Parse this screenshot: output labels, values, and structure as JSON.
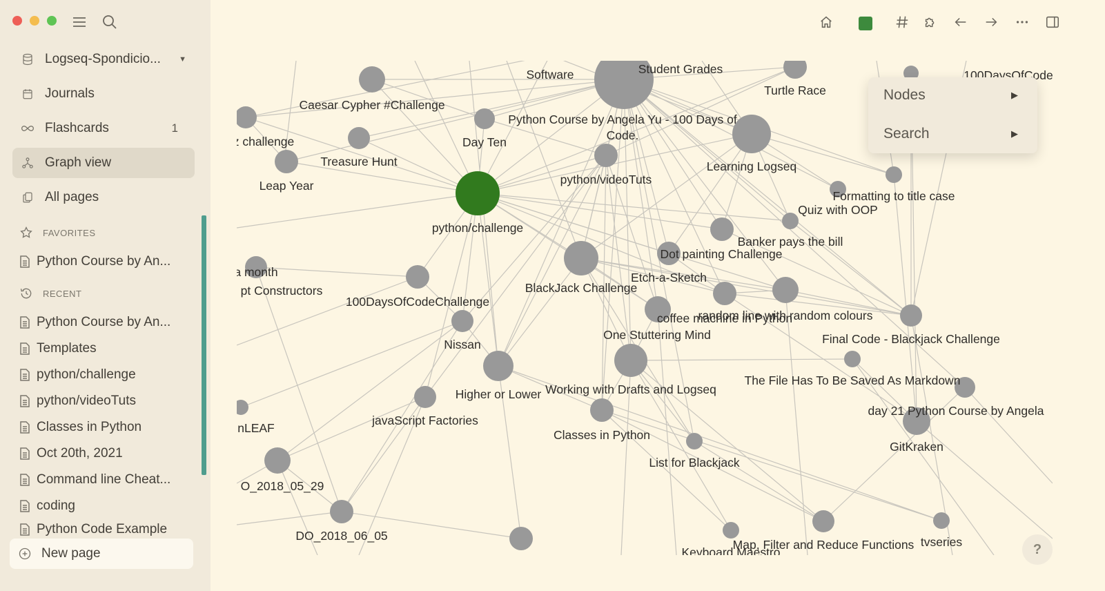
{
  "sidebar": {
    "graph_name": "Logseq-Spondicio...",
    "nav": [
      {
        "label": "Journals",
        "icon": "calendar-icon"
      },
      {
        "label": "Flashcards",
        "icon": "infinity-icon",
        "badge": "1"
      },
      {
        "label": "Graph view",
        "icon": "graph-icon",
        "active": true
      },
      {
        "label": "All pages",
        "icon": "pages-icon"
      }
    ],
    "favorites_header": "FAVORITES",
    "favorites": [
      "Python Course by An..."
    ],
    "recent_header": "RECENT",
    "recent": [
      "Python Course by An...",
      "Templates",
      "python/challenge",
      "python/videoTuts",
      "Classes in Python",
      "Oct 20th, 2021",
      "Command line Cheat...",
      "coding",
      "Python Code Example"
    ],
    "new_page": "New page"
  },
  "header": {
    "icons": [
      "home-icon",
      "graph-color-swatch-icon",
      "hashtag-icon",
      "puzzle-icon",
      "back-arrow-icon",
      "forward-arrow-icon",
      "more-icon",
      "right-sidebar-icon"
    ]
  },
  "context_menu": {
    "items": [
      "Nodes",
      "Search"
    ]
  },
  "help": "?",
  "graph": {
    "colors": {
      "node": "#999999",
      "highlight": "#317a1e",
      "edge": "#c8c5bd"
    },
    "node_labels": [
      "Software",
      "Student Grades",
      "Turtle Race",
      "100DaysOfCode",
      "Caesar Cypher #Challenge",
      "Python Course by Angela Yu -  100 Days of",
      "Code.",
      "z challenge",
      "Day Ten",
      "Treasure Hunt",
      "Learning Logseq",
      "Leap Year",
      "python/videoTuts",
      "Formatting to title case",
      "Quiz with OOP",
      "python/challenge",
      "Banker pays the bill",
      "Dot painting Challenge",
      "a month",
      "Etch-a-Sketch",
      "pt Constructors",
      "BlackJack Challenge",
      "100DaysOfCodeChallenge",
      "random line with random colours",
      "coffee machine in Python",
      "Final Code - Blackjack Challenge",
      "Nissan",
      "One Stuttering Mind",
      "The File Has To Be Saved As Markdown",
      "Higher or Lower",
      "Working with Drafts and Logseq",
      "day 21 Python Course by Angela",
      "javaScript Factories",
      "nLEAF",
      "Classes in Python",
      "GitKraken",
      "List for Blackjack",
      "O_2018_05_29",
      "DO_2018_06_05",
      "Map, Filter and Reduce Functions",
      "tvseries",
      "Keyboard Maestro"
    ]
  }
}
